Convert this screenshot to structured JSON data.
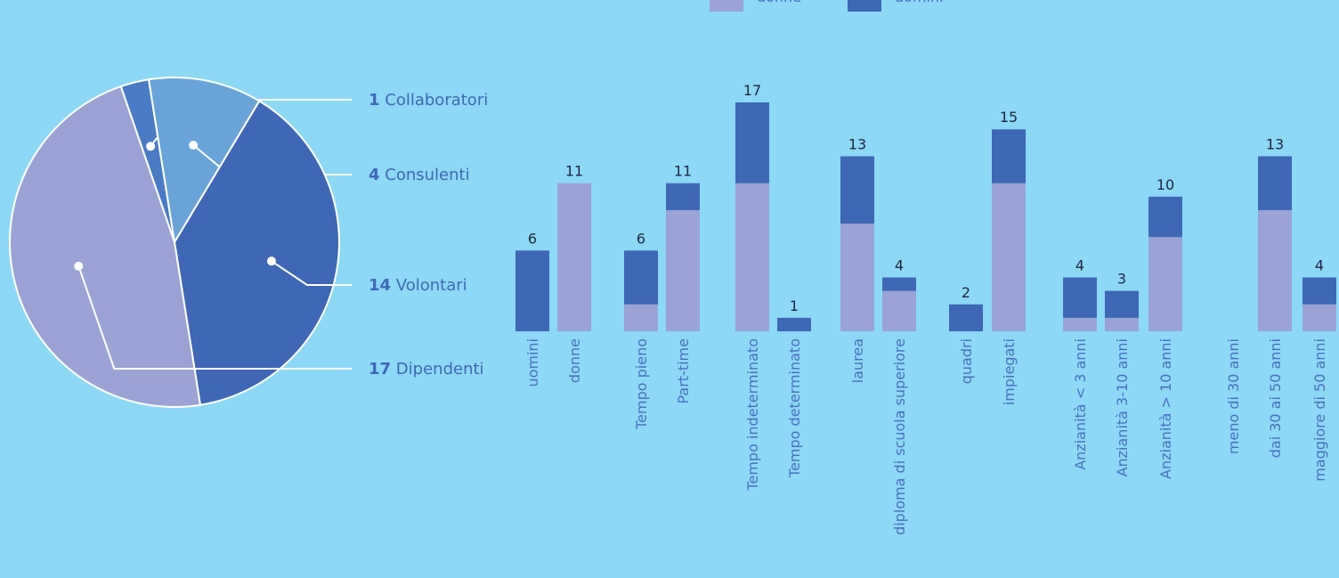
{
  "chart_data": [
    {
      "type": "pie",
      "categories": [
        "Collaboratori",
        "Consulenti",
        "Volontari",
        "Dipendenti"
      ],
      "values": [
        1,
        4,
        14,
        17
      ],
      "colors": [
        "#4a7bc4",
        "#6aa3d8",
        "#3f67b5",
        "#9aa3d4"
      ]
    },
    {
      "type": "stacked-bar",
      "categories": [
        "uomini",
        "donne",
        "Tempo pieno",
        "Part-time",
        "Tempo indeterminato",
        "Tempo determinato",
        "laurea",
        "diploma di scuola superiore",
        "quadri",
        "impiegati",
        "Anzianità < 3 anni",
        "Anzianità 3-10 anni",
        "Anzianità > 10 anni",
        "meno di 30 anni",
        "dai 30 ai 50 anni",
        "maggiore di 50 anni"
      ],
      "series": [
        {
          "name": "donne",
          "color": "#9aa3d4",
          "values": [
            0,
            11,
            2,
            9,
            11,
            0,
            8,
            3,
            0,
            11,
            1,
            1,
            7,
            null,
            9,
            2
          ]
        },
        {
          "name": "uomini",
          "color": "#3f67b5",
          "values": [
            6,
            0,
            4,
            2,
            6,
            1,
            5,
            1,
            2,
            4,
            3,
            2,
            3,
            null,
            4,
            2
          ]
        }
      ],
      "totals": [
        6,
        11,
        6,
        11,
        17,
        1,
        13,
        4,
        2,
        15,
        4,
        3,
        10,
        null,
        13,
        4
      ]
    }
  ]
}
